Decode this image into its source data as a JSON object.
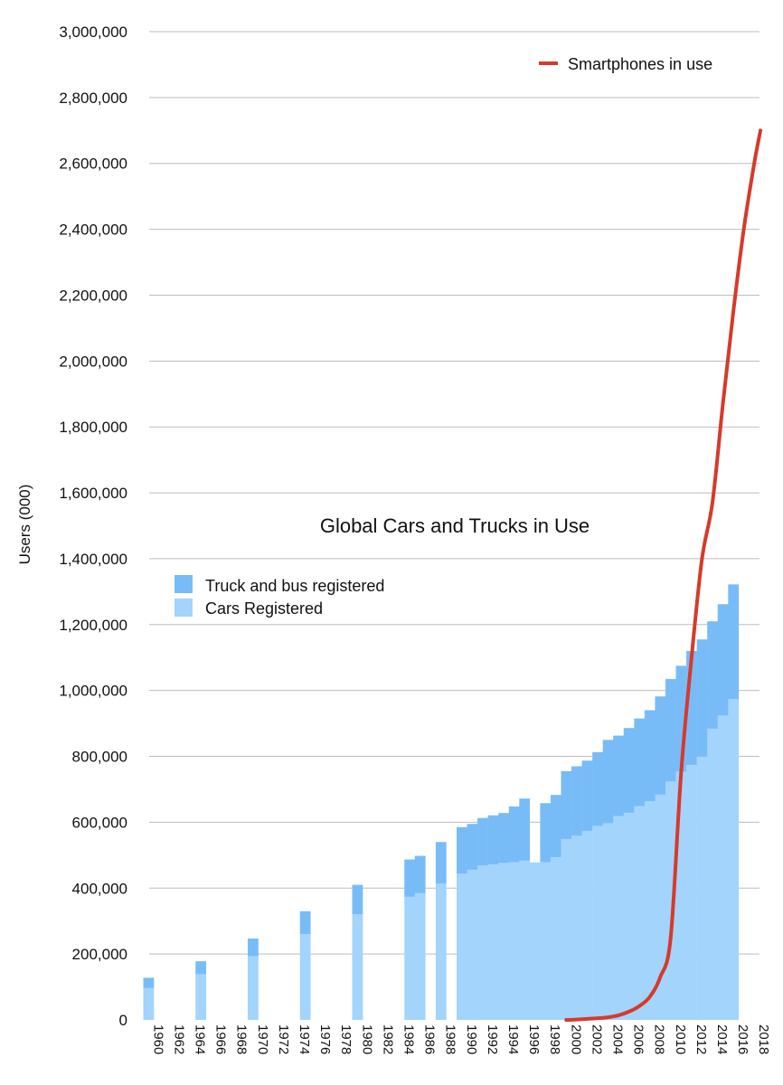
{
  "chart_data": {
    "type": "bar",
    "title": "Global Cars and Trucks in Use",
    "ylabel": "Users (000)",
    "xlabel": "",
    "ylim": [
      0,
      3000000
    ],
    "y_ticks": [
      0,
      200000,
      400000,
      600000,
      800000,
      1000000,
      1200000,
      1400000,
      1600000,
      1800000,
      2000000,
      2200000,
      2400000,
      2600000,
      2800000,
      3000000
    ],
    "y_tick_labels": [
      "0",
      "200,000",
      "400,000",
      "600,000",
      "800,000",
      "1,000,000",
      "1,200,000",
      "1,400,000",
      "1,600,000",
      "1,800,000",
      "2,000,000",
      "2,200,000",
      "2,400,000",
      "2,600,000",
      "2,800,000",
      "3,000,000"
    ],
    "x_tick_labels": [
      "1960",
      "1962",
      "1964",
      "1966",
      "1968",
      "1970",
      "1972",
      "1974",
      "1976",
      "1978",
      "1980",
      "1982",
      "1984",
      "1986",
      "1988",
      "1990",
      "1992",
      "1994",
      "1996",
      "1998",
      "2000",
      "2002",
      "2004",
      "2006",
      "2008",
      "2010",
      "2012",
      "2014",
      "2016",
      "2018"
    ],
    "grid": true,
    "stacked": true,
    "legend_bars_placement": "center-left",
    "legend_line_placement": "top-right",
    "colors": {
      "cars": "#a3d4fb",
      "trucks": "#78bcf7",
      "smartphones": "#d63a2b",
      "grid": "#bdbdbd"
    },
    "bar_series": [
      {
        "name": "Cars Registered",
        "color_key": "cars",
        "points": [
          [
            1960,
            98000
          ],
          [
            1965,
            140000
          ],
          [
            1970,
            195000
          ],
          [
            1975,
            262000
          ],
          [
            1980,
            322000
          ],
          [
            1985,
            375000
          ],
          [
            1986,
            386000
          ],
          [
            1988,
            415000
          ],
          [
            1990,
            445000
          ],
          [
            1991,
            457000
          ],
          [
            1992,
            470000
          ],
          [
            1993,
            473000
          ],
          [
            1994,
            478000
          ],
          [
            1995,
            480000
          ],
          [
            1996,
            485000
          ],
          [
            1997,
            478000
          ],
          [
            1998,
            480000
          ],
          [
            1999,
            495000
          ],
          [
            2000,
            550000
          ],
          [
            2001,
            560000
          ],
          [
            2002,
            575000
          ],
          [
            2003,
            590000
          ],
          [
            2004,
            598000
          ],
          [
            2005,
            620000
          ],
          [
            2006,
            630000
          ],
          [
            2007,
            650000
          ],
          [
            2008,
            665000
          ],
          [
            2009,
            685000
          ],
          [
            2010,
            725000
          ],
          [
            2011,
            755000
          ],
          [
            2012,
            775000
          ],
          [
            2013,
            800000
          ],
          [
            2014,
            885000
          ],
          [
            2015,
            925000
          ],
          [
            2016,
            975000
          ]
        ]
      },
      {
        "name": "Truck and bus registered",
        "color_key": "trucks",
        "points": [
          [
            1960,
            30000
          ],
          [
            1965,
            38000
          ],
          [
            1970,
            52000
          ],
          [
            1975,
            68000
          ],
          [
            1980,
            88000
          ],
          [
            1985,
            112000
          ],
          [
            1986,
            112000
          ],
          [
            1988,
            125000
          ],
          [
            1990,
            140000
          ],
          [
            1991,
            138000
          ],
          [
            1992,
            143000
          ],
          [
            1993,
            148000
          ],
          [
            1994,
            150000
          ],
          [
            1995,
            168000
          ],
          [
            1996,
            187000
          ],
          [
            1997,
            0
          ],
          [
            1998,
            178000
          ],
          [
            1999,
            188000
          ],
          [
            2000,
            205000
          ],
          [
            2001,
            210000
          ],
          [
            2002,
            212000
          ],
          [
            2003,
            223000
          ],
          [
            2004,
            252000
          ],
          [
            2005,
            243000
          ],
          [
            2006,
            256000
          ],
          [
            2007,
            265000
          ],
          [
            2008,
            275000
          ],
          [
            2009,
            297000
          ],
          [
            2010,
            310000
          ],
          [
            2011,
            320000
          ],
          [
            2012,
            345000
          ],
          [
            2013,
            355000
          ],
          [
            2014,
            325000
          ],
          [
            2015,
            337000
          ],
          [
            2016,
            347000
          ]
        ]
      }
    ],
    "line_series": {
      "name": "Smartphones in use",
      "color_key": "smartphones",
      "points": [
        [
          2000,
          0
        ],
        [
          2001,
          1000
        ],
        [
          2002,
          3000
        ],
        [
          2003,
          5000
        ],
        [
          2004,
          8000
        ],
        [
          2005,
          14000
        ],
        [
          2006,
          25000
        ],
        [
          2007,
          42000
        ],
        [
          2008,
          70000
        ],
        [
          2009,
          130000
        ],
        [
          2010,
          250000
        ],
        [
          2011,
          750000
        ],
        [
          2012,
          1100000
        ],
        [
          2013,
          1400000
        ],
        [
          2014,
          1570000
        ],
        [
          2015,
          1870000
        ],
        [
          2016,
          2150000
        ],
        [
          2017,
          2400000
        ],
        [
          2018,
          2600000
        ],
        [
          2018.6,
          2700000
        ]
      ]
    }
  }
}
